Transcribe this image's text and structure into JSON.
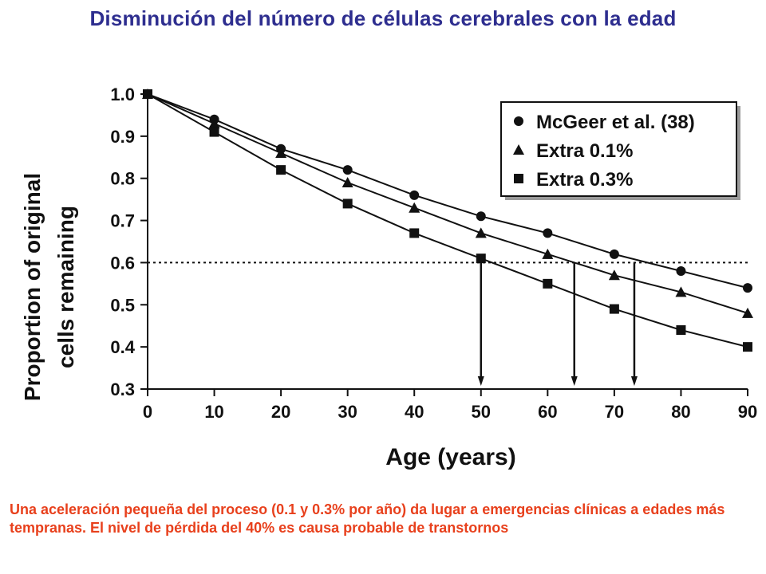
{
  "slide": {
    "title": "Disminución del número de células cerebrales con la edad",
    "caption": "Una aceleración pequeña del proceso (0.1 y 0.3% por año) da lugar a emergencias clínicas a edades más tempranas. El nivel de pérdida del 40% es causa probable de transtornos"
  },
  "colors": {
    "title": "#2e2e8f",
    "caption": "#e8401c",
    "ink": "#111111"
  },
  "chart_data": {
    "type": "line",
    "title": "",
    "xlabel": "Age (years)",
    "ylabel_line1": "Proportion of original",
    "ylabel_line2": "cells remaining",
    "xlim": [
      0,
      90
    ],
    "ylim": [
      0.3,
      1.0
    ],
    "x_ticks": [
      "0",
      "10",
      "20",
      "30",
      "40",
      "50",
      "60",
      "70",
      "80",
      "90"
    ],
    "y_ticks": [
      "0.3",
      "0.4",
      "0.5",
      "0.6",
      "0.7",
      "0.8",
      "0.9",
      "1.0"
    ],
    "grid": false,
    "legend_position": "top-right",
    "reference_line": {
      "y": 0.6,
      "style": "dotted"
    },
    "drop_lines_x": [
      50,
      64,
      73
    ],
    "series": [
      {
        "name": "McGeer et al. (38)",
        "marker": "circle",
        "x": [
          0,
          10,
          20,
          30,
          40,
          50,
          60,
          70,
          80,
          90
        ],
        "y": [
          1.0,
          0.94,
          0.87,
          0.82,
          0.76,
          0.71,
          0.67,
          0.62,
          0.58,
          0.54
        ]
      },
      {
        "name": "Extra 0.1%",
        "marker": "triangle",
        "x": [
          0,
          10,
          20,
          30,
          40,
          50,
          60,
          70,
          80,
          90
        ],
        "y": [
          1.0,
          0.93,
          0.86,
          0.79,
          0.73,
          0.67,
          0.62,
          0.57,
          0.53,
          0.48
        ]
      },
      {
        "name": "Extra 0.3%",
        "marker": "square",
        "x": [
          0,
          10,
          20,
          30,
          40,
          50,
          60,
          70,
          80,
          90
        ],
        "y": [
          1.0,
          0.91,
          0.82,
          0.74,
          0.67,
          0.61,
          0.55,
          0.49,
          0.44,
          0.4
        ]
      }
    ]
  }
}
